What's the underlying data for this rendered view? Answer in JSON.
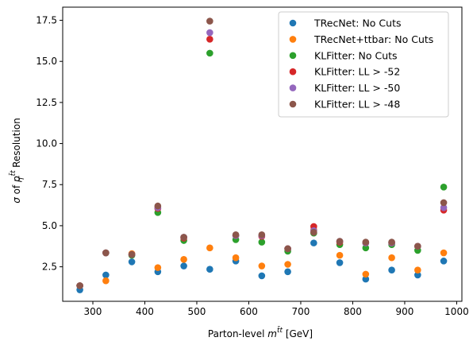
{
  "chart_data": {
    "type": "scatter",
    "xlabel": "Parton-level m^{t̄t} [GeV]",
    "xlabel_parts": {
      "main": "Parton-level ",
      "m": "m",
      "sup": "t̄t",
      "unit": " [GeV]"
    },
    "ylabel": "σ of p_T^{t̄t} Resolution",
    "ylabel_parts": {
      "sigma": "σ",
      "of": " of ",
      "p": "p",
      "sub": "T",
      "sup": "t̄t",
      "rest": " Resolution"
    },
    "xlim": [
      242,
      1010
    ],
    "ylim": [
      0.4,
      18.3
    ],
    "xticks": [
      300,
      400,
      500,
      600,
      700,
      800,
      900,
      1000
    ],
    "yticks": [
      2.5,
      5.0,
      7.5,
      10.0,
      12.5,
      15.0,
      17.5
    ],
    "ytick_labels": [
      "2.5",
      "5.0",
      "7.5",
      "10.0",
      "12.5",
      "15.0",
      "17.5"
    ],
    "xtick_labels": [
      "300",
      "400",
      "500",
      "600",
      "700",
      "800",
      "900",
      "1000"
    ],
    "x": [
      275,
      325,
      375,
      425,
      475,
      525,
      575,
      625,
      675,
      725,
      775,
      825,
      875,
      925,
      975
    ],
    "legend_position": "upper right",
    "grid": false,
    "series": [
      {
        "name": "TRecNet: No Cuts",
        "color": "#1f77b4",
        "values": [
          1.1,
          2.0,
          2.8,
          2.2,
          2.55,
          2.35,
          2.85,
          1.95,
          2.2,
          3.95,
          2.75,
          1.75,
          2.3,
          2.0,
          2.85
        ]
      },
      {
        "name": "TRecNet+ttbar: No Cuts",
        "color": "#ff7f0e",
        "values": [
          1.35,
          1.65,
          3.3,
          2.45,
          2.95,
          3.65,
          3.05,
          2.55,
          2.65,
          4.75,
          3.2,
          2.05,
          3.05,
          2.3,
          3.35
        ]
      },
      {
        "name": "KLFitter: No Cuts",
        "color": "#2ca02c",
        "values": [
          1.35,
          3.35,
          3.2,
          5.8,
          4.1,
          15.5,
          4.15,
          4.0,
          3.45,
          4.55,
          3.85,
          3.65,
          3.85,
          3.5,
          7.35
        ]
      },
      {
        "name": "KLFitter: LL > -52",
        "color": "#d62728",
        "values": [
          1.35,
          3.35,
          3.25,
          6.05,
          4.25,
          16.35,
          4.4,
          4.35,
          3.6,
          4.95,
          4.0,
          3.95,
          3.95,
          3.75,
          5.95
        ]
      },
      {
        "name": "KLFitter: LL > -50",
        "color": "#9467bd",
        "values": [
          1.35,
          3.35,
          3.25,
          6.1,
          4.3,
          16.75,
          4.4,
          4.4,
          3.6,
          4.7,
          4.05,
          3.95,
          3.95,
          3.75,
          6.1
        ]
      },
      {
        "name": "KLFitter: LL > -48",
        "color": "#8c564b",
        "values": [
          1.35,
          3.35,
          3.25,
          6.2,
          4.3,
          17.45,
          4.45,
          4.45,
          3.6,
          4.6,
          4.05,
          4.0,
          4.0,
          3.75,
          6.4
        ]
      }
    ]
  }
}
